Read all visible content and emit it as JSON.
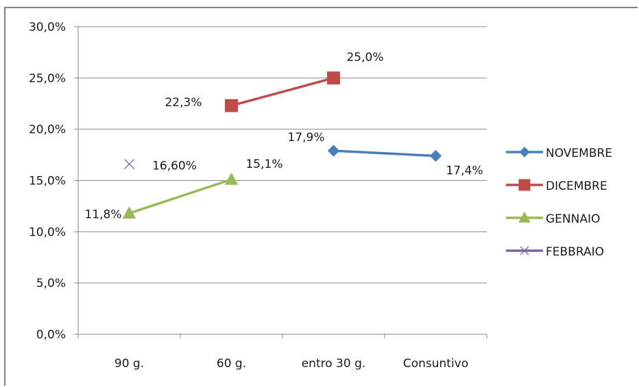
{
  "chart_data": {
    "type": "line",
    "categories": [
      "90 g.",
      "60 g.",
      "entro 30 g.",
      "Consuntivo"
    ],
    "ylim": [
      0,
      30
    ],
    "yticks": [
      "0,0%",
      "5,0%",
      "10,0%",
      "15,0%",
      "20,0%",
      "25,0%",
      "30,0%"
    ],
    "grid": true,
    "legend_position": "right",
    "series": [
      {
        "name": "NOVEMBRE",
        "color": "#4a7ebb",
        "marker": "diamond",
        "values": [
          null,
          null,
          17.9,
          17.4
        ],
        "labels": [
          null,
          null,
          "17,9%",
          "17,4%"
        ]
      },
      {
        "name": "DICEMBRE",
        "color": "#be4b48",
        "marker": "square",
        "values": [
          null,
          22.3,
          25.0,
          null
        ],
        "labels": [
          null,
          "22,3%",
          "25,0%",
          null
        ]
      },
      {
        "name": "GENNAIO",
        "color": "#98b954",
        "marker": "triangle",
        "values": [
          11.8,
          15.1,
          null,
          null
        ],
        "labels": [
          "11,8%",
          "15,1%",
          null,
          null
        ]
      },
      {
        "name": "FEBBRAIO",
        "color": "#7d60a0",
        "marker": "x",
        "values": [
          16.6,
          null,
          null,
          null
        ],
        "labels": [
          "16,60%",
          null,
          null,
          null
        ]
      }
    ]
  }
}
